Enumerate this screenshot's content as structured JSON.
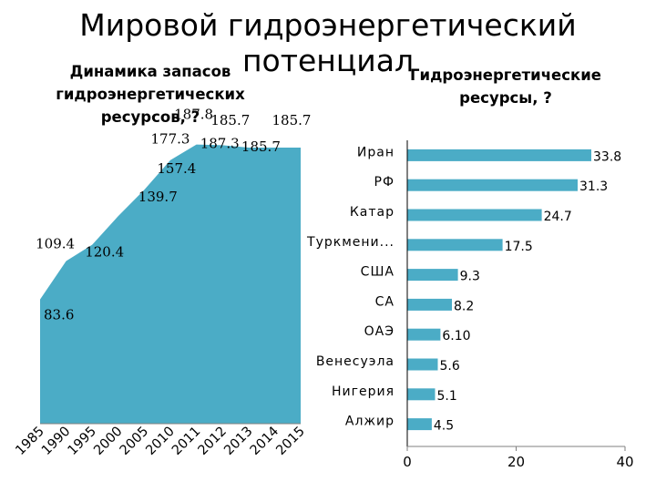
{
  "title": "Мировой гидроэнергетический потенциал",
  "chart_data": [
    {
      "type": "area",
      "title": "Динамика запасов гидроэнергетических ресурсов, ?",
      "categories": [
        "1985",
        "1990",
        "1995",
        "2000",
        "2005",
        "2010",
        "2011",
        "2012",
        "2013",
        "2014",
        "2015"
      ],
      "values": [
        83.6,
        109.4,
        120.4,
        139.7,
        157.4,
        177.3,
        187.8,
        187.3,
        185.7,
        185.7,
        185.7
      ],
      "data_labels": [
        "83.6",
        "109.4",
        "120.4",
        "139.7",
        "157.4",
        "177.3",
        "187.8",
        "187.3",
        "185.7",
        "185.7",
        "185.7"
      ],
      "ylim": [
        0,
        190
      ],
      "color": "#4BACC6"
    },
    {
      "type": "bar",
      "orientation": "horizontal",
      "title": "Гидроэнергетические ресурсы, ?",
      "categories": [
        "Иран",
        "РФ",
        "Катар",
        "Туркмени...",
        "США",
        "СА",
        "ОАЭ",
        "Венесуэла",
        "Нигерия",
        "Алжир"
      ],
      "values": [
        33.8,
        31.3,
        24.7,
        17.5,
        9.3,
        8.2,
        6.1,
        5.6,
        5.1,
        4.5
      ],
      "data_labels": [
        "33.8",
        "31.3",
        "24.7",
        "17.5",
        "9.3",
        "8.2",
        "6.10",
        "5.6",
        "5.1",
        "4.5"
      ],
      "xlim": [
        0,
        40
      ],
      "xticks": [
        "0",
        "20",
        "40"
      ],
      "color": "#4BACC6"
    }
  ]
}
